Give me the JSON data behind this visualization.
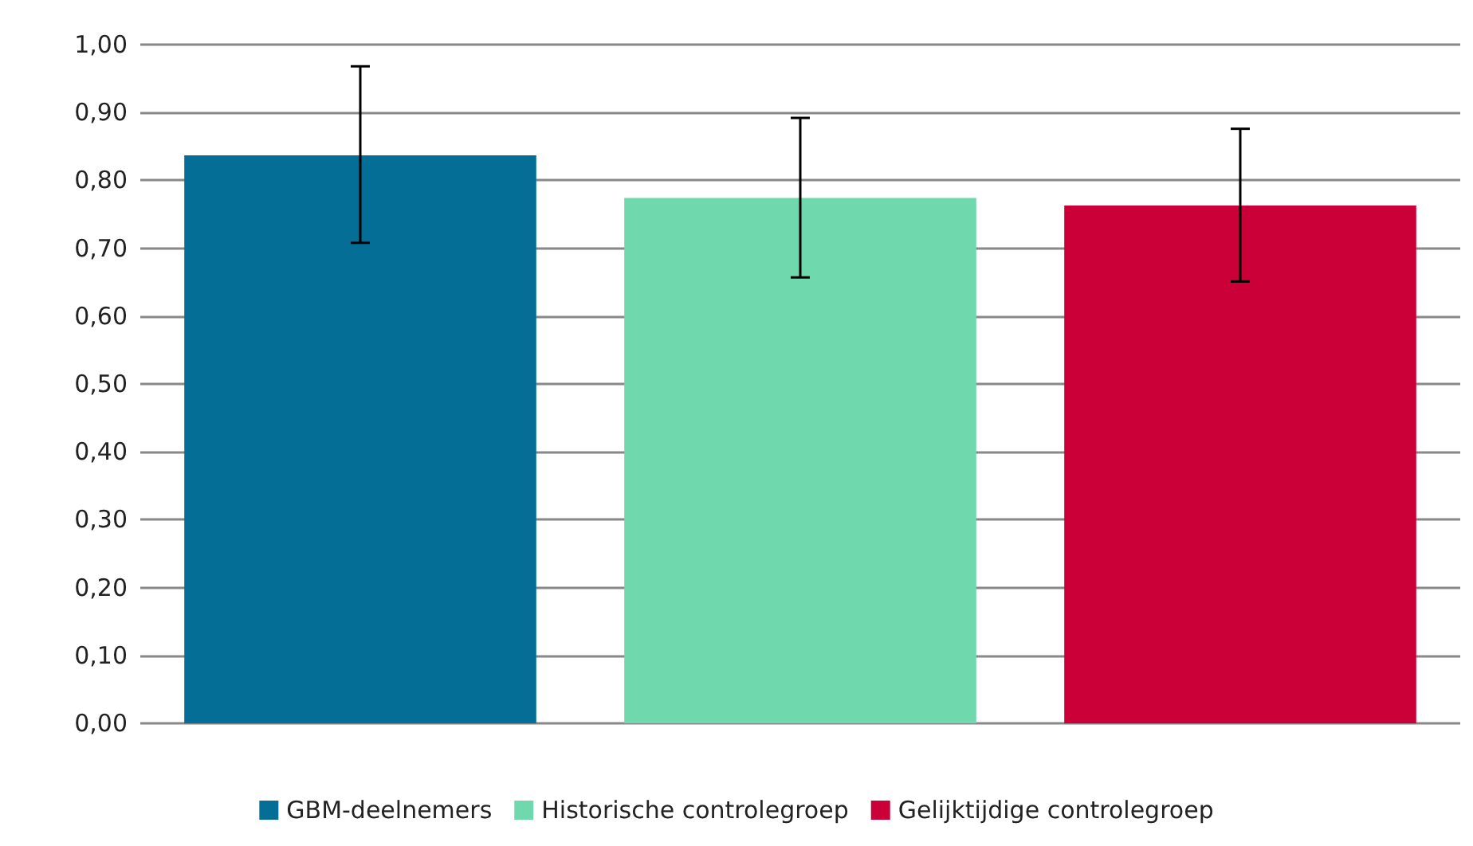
{
  "chart_data": {
    "type": "bar",
    "categories": [
      null,
      null,
      null
    ],
    "series": [
      {
        "name": "GBM-deelnemers",
        "color": "#056e96",
        "values": [
          0.837,
          null,
          null
        ],
        "errors": [
          [
            0.708,
            0.968
          ],
          null,
          null
        ]
      },
      {
        "name": "Historische controlegroep",
        "color": "#6fd8ad",
        "values": [
          null,
          0.774,
          null
        ],
        "errors": [
          null,
          [
            0.657,
            0.892
          ],
          null
        ]
      },
      {
        "name": "Gelijktijdige controlegroep",
        "color": "#cc0038",
        "values": [
          null,
          null,
          0.763
        ],
        "errors": [
          null,
          null,
          [
            0.651,
            0.876
          ]
        ]
      }
    ],
    "ylim": [
      0,
      1
    ],
    "yticks": [
      {
        "value": 0,
        "label": "0,00"
      },
      {
        "value": 0.1,
        "label": "0,10"
      },
      {
        "value": 0.2,
        "label": "0,20"
      },
      {
        "value": 0.3,
        "label": "0,30"
      },
      {
        "value": 0.4,
        "label": "0,40"
      },
      {
        "value": 0.5,
        "label": "0,50"
      },
      {
        "value": 0.6,
        "label": "0,60"
      },
      {
        "value": 0.7,
        "label": "0,70"
      },
      {
        "value": 0.8,
        "label": "0,80"
      },
      {
        "value": 0.9,
        "label": "0,90"
      },
      {
        "value": 1,
        "label": "1,00"
      }
    ],
    "grid": "y",
    "legend": "bottom"
  }
}
